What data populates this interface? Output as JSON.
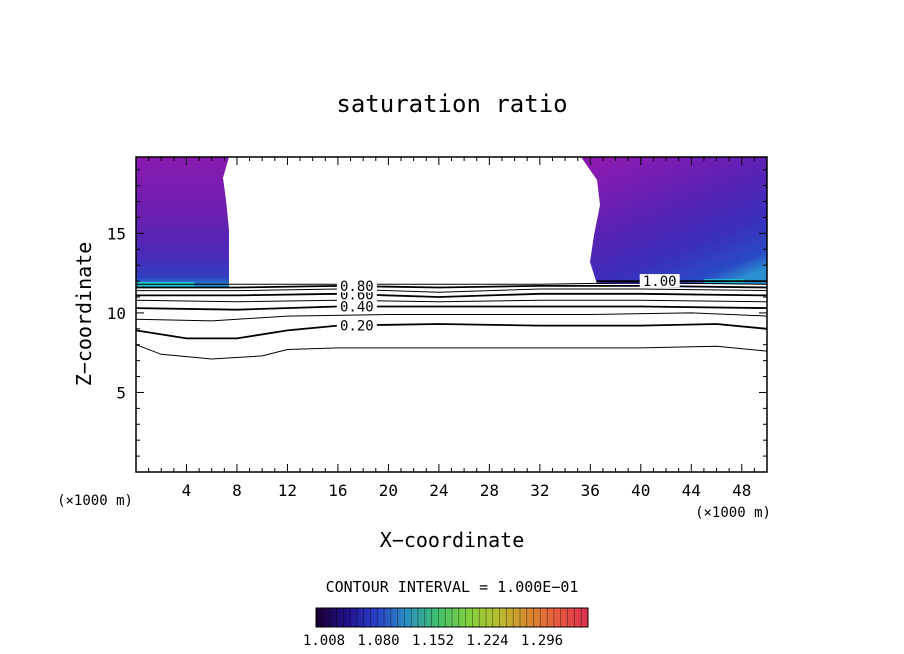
{
  "chart_data": {
    "type": "contour",
    "title": "saturation ratio",
    "xlabel": "X−coordinate",
    "ylabel": "Z−coordinate",
    "x_unit_label": "(×1000 m)",
    "z_unit_label": "(×1000 m)",
    "xlim": [
      0,
      50
    ],
    "ylim": [
      0,
      19.8
    ],
    "x_ticks": [
      4,
      8,
      12,
      16,
      20,
      24,
      28,
      32,
      36,
      40,
      44,
      48
    ],
    "y_ticks": [
      5,
      10,
      15
    ],
    "contour_interval_text": "CONTOUR INTERVAL = 1.000E−01",
    "contour_lines": [
      {
        "level": 0.1,
        "label": "",
        "points": [
          [
            0,
            8.0
          ],
          [
            2,
            7.4
          ],
          [
            6,
            7.1
          ],
          [
            10,
            7.3
          ],
          [
            12,
            7.7
          ],
          [
            16,
            7.8
          ],
          [
            24,
            7.8
          ],
          [
            32,
            7.8
          ],
          [
            40,
            7.8
          ],
          [
            46,
            7.9
          ],
          [
            50,
            7.6
          ]
        ]
      },
      {
        "level": 0.2,
        "label": "0.20",
        "points": [
          [
            0,
            8.9
          ],
          [
            4,
            8.4
          ],
          [
            8,
            8.4
          ],
          [
            12,
            8.9
          ],
          [
            16,
            9.2
          ],
          [
            24,
            9.3
          ],
          [
            32,
            9.2
          ],
          [
            40,
            9.2
          ],
          [
            46,
            9.3
          ],
          [
            50,
            9.0
          ]
        ]
      },
      {
        "level": 0.3,
        "label": "",
        "points": [
          [
            0,
            9.6
          ],
          [
            6,
            9.5
          ],
          [
            12,
            9.8
          ],
          [
            20,
            9.9
          ],
          [
            28,
            9.9
          ],
          [
            36,
            9.9
          ],
          [
            44,
            10.0
          ],
          [
            50,
            9.8
          ]
        ]
      },
      {
        "level": 0.4,
        "label": "0.40",
        "points": [
          [
            0,
            10.3
          ],
          [
            8,
            10.2
          ],
          [
            16,
            10.4
          ],
          [
            24,
            10.4
          ],
          [
            32,
            10.4
          ],
          [
            40,
            10.4
          ],
          [
            50,
            10.3
          ]
        ]
      },
      {
        "level": 0.5,
        "label": "",
        "points": [
          [
            0,
            10.8
          ],
          [
            8,
            10.7
          ],
          [
            16,
            10.8
          ],
          [
            24,
            10.7
          ],
          [
            32,
            10.8
          ],
          [
            40,
            10.8
          ],
          [
            50,
            10.7
          ]
        ]
      },
      {
        "level": 0.6,
        "label": "0.60",
        "points": [
          [
            0,
            11.1
          ],
          [
            8,
            11.1
          ],
          [
            16,
            11.2
          ],
          [
            24,
            11.0
          ],
          [
            32,
            11.2
          ],
          [
            40,
            11.2
          ],
          [
            50,
            11.1
          ]
        ]
      },
      {
        "level": 0.7,
        "label": "",
        "points": [
          [
            0,
            11.4
          ],
          [
            8,
            11.4
          ],
          [
            16,
            11.5
          ],
          [
            24,
            11.3
          ],
          [
            32,
            11.5
          ],
          [
            40,
            11.5
          ],
          [
            50,
            11.4
          ]
        ]
      },
      {
        "level": 0.8,
        "label": "0.80",
        "points": [
          [
            0,
            11.6
          ],
          [
            8,
            11.6
          ],
          [
            16,
            11.7
          ],
          [
            24,
            11.6
          ],
          [
            32,
            11.7
          ],
          [
            40,
            11.7
          ],
          [
            50,
            11.6
          ]
        ]
      },
      {
        "level": 0.9,
        "label": "",
        "points": [
          [
            0,
            11.8
          ],
          [
            8,
            11.8
          ],
          [
            16,
            11.8
          ],
          [
            24,
            11.8
          ],
          [
            32,
            11.8
          ],
          [
            40,
            11.9
          ],
          [
            50,
            11.8
          ]
        ]
      },
      {
        "level": 1.0,
        "label": "1.00",
        "points": [
          [
            36.5,
            12.0
          ],
          [
            40,
            12.0
          ],
          [
            44,
            12.0
          ],
          [
            50,
            12.0
          ]
        ]
      }
    ],
    "colorbar": {
      "tick_labels": [
        "1.008",
        "1.080",
        "1.152",
        "1.224",
        "1.296"
      ],
      "stops": [
        "#1a0030",
        "#20108a",
        "#2a3fc8",
        "#2a8fc0",
        "#3fbf70",
        "#7fd040",
        "#b8c030",
        "#d88a30",
        "#e85a40",
        "#d83050"
      ]
    },
    "shaded_region_color": "#8a1ab0",
    "near_saturation_color": "#1f9fd0",
    "grid": false
  }
}
